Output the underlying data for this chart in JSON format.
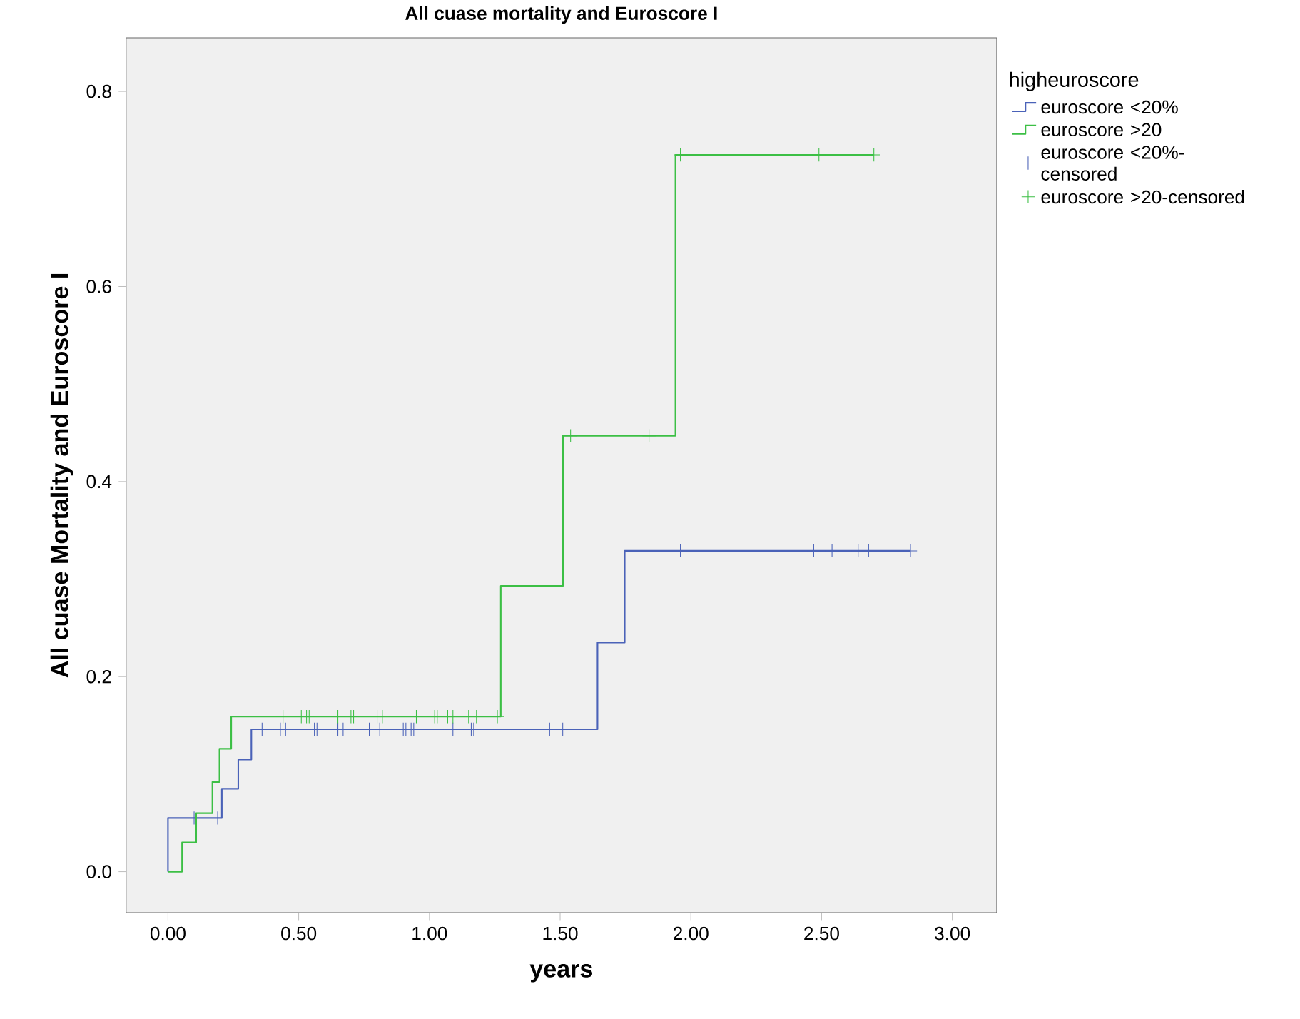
{
  "chart_data": {
    "type": "step",
    "title": "All cuase mortality and Euroscore I",
    "xlabel": "years",
    "ylabel": "All cuase Mortality and Euroscore I",
    "legend_title": "higheuroscore",
    "xlim": [
      -0.16,
      3.17
    ],
    "ylim": [
      -0.042,
      0.855
    ],
    "xticks": [
      {
        "value": 0,
        "label": "0.00"
      },
      {
        "value": 0.5,
        "label": "0.50"
      },
      {
        "value": 1,
        "label": "1.00"
      },
      {
        "value": 1.5,
        "label": "1.50"
      },
      {
        "value": 2,
        "label": "2.00"
      },
      {
        "value": 2.5,
        "label": "2.50"
      },
      {
        "value": 3,
        "label": "3.00"
      }
    ],
    "yticks": [
      {
        "value": 0,
        "label": "0.0"
      },
      {
        "value": 0.2,
        "label": "0.2"
      },
      {
        "value": 0.4,
        "label": "0.4"
      },
      {
        "value": 0.6,
        "label": "0.6"
      },
      {
        "value": 0.8,
        "label": "0.8"
      }
    ],
    "grid": false,
    "legend": "right",
    "series": [
      {
        "name": "euroscore <20%",
        "color": "#4a62b8",
        "marker": "none",
        "x": [
          0,
          0,
          0.206,
          0.269,
          0.319,
          1.643,
          1.747,
          2.84
        ],
        "values": [
          0,
          0.055,
          0.085,
          0.115,
          0.146,
          0.235,
          0.329,
          0.329
        ]
      },
      {
        "name": "euroscore >20",
        "color": "#3cbf45",
        "marker": "none",
        "x": [
          0,
          0.054,
          0.108,
          0.17,
          0.197,
          0.242,
          1.273,
          1.511,
          1.941,
          2.7
        ],
        "values": [
          0,
          0.03,
          0.06,
          0.092,
          0.126,
          0.159,
          0.293,
          0.447,
          0.735,
          0.735
        ]
      },
      {
        "name": "euroscore <20%-censored",
        "type": "scatter",
        "color": "#4a62b8",
        "marker": "cross",
        "x": [
          0.1,
          0.19,
          0.36,
          0.43,
          0.45,
          0.56,
          0.57,
          0.65,
          0.67,
          0.77,
          0.81,
          0.9,
          0.91,
          0.93,
          0.94,
          1.09,
          1.16,
          1.17,
          1.17,
          1.46,
          1.51,
          1.96,
          2.47,
          2.54,
          2.64,
          2.68,
          2.84
        ],
        "values": [
          0.055,
          0.055,
          0.146,
          0.146,
          0.146,
          0.146,
          0.146,
          0.146,
          0.146,
          0.146,
          0.146,
          0.146,
          0.146,
          0.146,
          0.146,
          0.146,
          0.146,
          0.146,
          0.146,
          0.146,
          0.146,
          0.329,
          0.329,
          0.329,
          0.329,
          0.329,
          0.329
        ]
      },
      {
        "name": "euroscore >20-censored",
        "type": "scatter",
        "color": "#3cbf45",
        "marker": "cross",
        "x": [
          0.44,
          0.51,
          0.53,
          0.54,
          0.65,
          0.7,
          0.71,
          0.8,
          0.82,
          0.95,
          1.02,
          1.03,
          1.07,
          1.09,
          1.15,
          1.18,
          1.26,
          1.54,
          1.84,
          1.96,
          2.49,
          2.7
        ],
        "values": [
          0.159,
          0.159,
          0.159,
          0.159,
          0.159,
          0.159,
          0.159,
          0.159,
          0.159,
          0.159,
          0.159,
          0.159,
          0.159,
          0.159,
          0.159,
          0.159,
          0.159,
          0.447,
          0.447,
          0.735,
          0.735,
          0.735
        ]
      }
    ]
  }
}
